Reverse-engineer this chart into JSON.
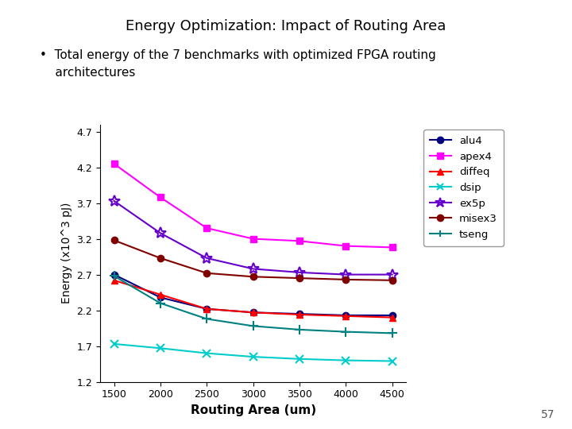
{
  "title": "Energy Optimization: Impact of Routing Area",
  "bullet_line1": "•  Total energy of the 7 benchmarks with optimized FPGA routing",
  "bullet_line2": "    architectures",
  "xlabel": "Routing Area (um)",
  "ylabel": "Energy (x10^3 pJ)",
  "x": [
    1500,
    2000,
    2500,
    3000,
    3500,
    4000,
    4500
  ],
  "series": {
    "alu4": {
      "color": "#000080",
      "marker": "o",
      "values": [
        2.7,
        2.38,
        2.22,
        2.17,
        2.15,
        2.13,
        2.13
      ]
    },
    "apex4": {
      "color": "#FF00FF",
      "marker": "s",
      "values": [
        4.25,
        3.78,
        3.35,
        3.2,
        3.17,
        3.1,
        3.08
      ]
    },
    "diffeq": {
      "color": "#FF0000",
      "marker": "^",
      "values": [
        2.62,
        2.42,
        2.22,
        2.17,
        2.14,
        2.12,
        2.1
      ]
    },
    "dsip": {
      "color": "#00CCCC",
      "marker": "x",
      "values": [
        1.73,
        1.67,
        1.6,
        1.55,
        1.52,
        1.5,
        1.49
      ]
    },
    "ex5p": {
      "color": "#6600CC",
      "marker": "*",
      "values": [
        3.73,
        3.28,
        2.93,
        2.78,
        2.73,
        2.7,
        2.7
      ]
    },
    "misex3": {
      "color": "#800000",
      "marker": "o",
      "values": [
        3.18,
        2.93,
        2.72,
        2.67,
        2.65,
        2.63,
        2.62
      ]
    },
    "tseng": {
      "color": "#008080",
      "marker": "+",
      "values": [
        2.68,
        2.3,
        2.08,
        1.98,
        1.93,
        1.9,
        1.88
      ]
    }
  },
  "ylim": [
    1.2,
    4.8
  ],
  "yticks": [
    1.2,
    1.7,
    2.2,
    2.7,
    3.2,
    3.7,
    4.2,
    4.7
  ],
  "xticks": [
    1500,
    2000,
    2500,
    3000,
    3500,
    4000,
    4500
  ],
  "page_number": "57",
  "background_color": "#FFFFFF"
}
